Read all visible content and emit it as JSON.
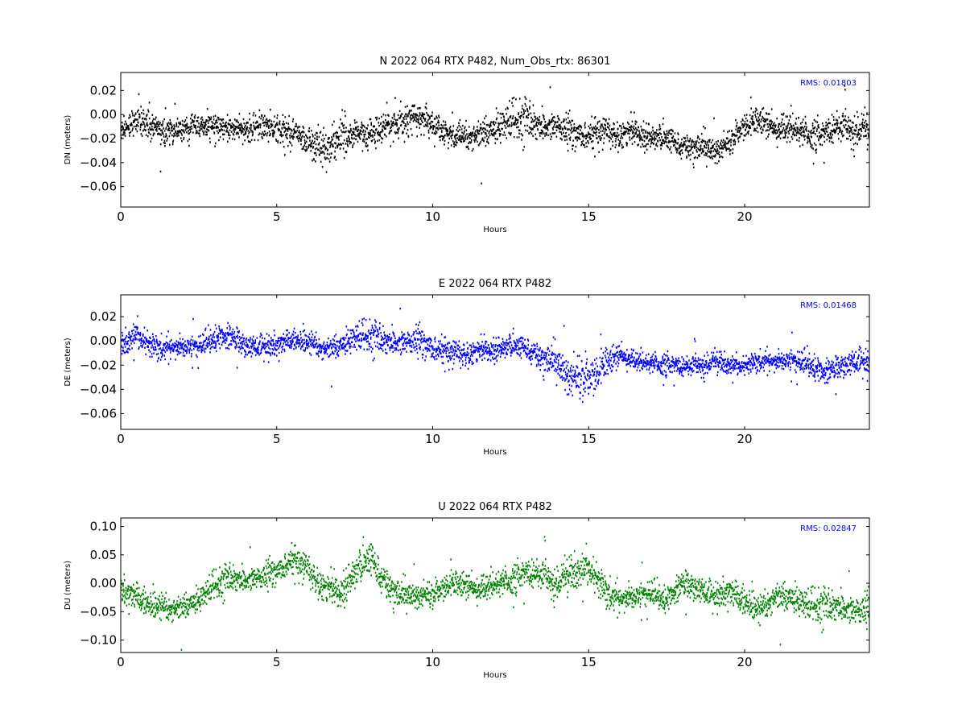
{
  "chart_data": [
    {
      "type": "scatter",
      "title": "N 2022 064 RTX  P482, Num_Obs_rtx: 86301",
      "xlabel": "Hours",
      "ylabel": "DN (meters)",
      "xlim": [
        0,
        24
      ],
      "ylim": [
        -0.077,
        0.035
      ],
      "xticks": [
        0,
        5,
        10,
        15,
        20
      ],
      "yticks": [
        0.02,
        0.0,
        -0.02,
        -0.04,
        -0.06
      ],
      "ytick_labels": [
        "0.02",
        "0.00",
        "−0.02",
        "−0.04",
        "−0.06"
      ],
      "color": "#000000",
      "annotation": "RMS:  0.01803",
      "annotation_color": "#0000ff",
      "series": [
        {
          "x": [
            0,
            0.5,
            1,
            1.5,
            2,
            2.5,
            3,
            3.5,
            4,
            4.5,
            5,
            5.5,
            6,
            6.5,
            7,
            7.5,
            8,
            8.5,
            9,
            9.5,
            10,
            10.5,
            11,
            11.5,
            12,
            12.5,
            13,
            13.5,
            14,
            14.5,
            15,
            15.5,
            16,
            16.5,
            17,
            17.5,
            18,
            18.5,
            19,
            19.5,
            20,
            20.5,
            21,
            21.5,
            22,
            22.5,
            23,
            23.5,
            24
          ],
          "y": [
            -0.013,
            -0.004,
            -0.011,
            -0.014,
            -0.012,
            -0.01,
            -0.009,
            -0.012,
            -0.013,
            -0.01,
            -0.012,
            -0.016,
            -0.022,
            -0.03,
            -0.02,
            -0.018,
            -0.015,
            -0.012,
            -0.004,
            -0.002,
            -0.008,
            -0.018,
            -0.02,
            -0.015,
            -0.012,
            -0.006,
            -0.004,
            -0.01,
            -0.01,
            -0.016,
            -0.018,
            -0.014,
            -0.016,
            -0.014,
            -0.018,
            -0.02,
            -0.026,
            -0.028,
            -0.03,
            -0.024,
            -0.008,
            -0.006,
            -0.012,
            -0.01,
            -0.016,
            -0.018,
            -0.01,
            -0.012,
            -0.014
          ],
          "spread": [
            0.008,
            0.01,
            0.009,
            0.009,
            0.008,
            0.008,
            0.009,
            0.008,
            0.009,
            0.01,
            0.01,
            0.011,
            0.013,
            0.015,
            0.014,
            0.012,
            0.012,
            0.012,
            0.011,
            0.011,
            0.01,
            0.01,
            0.01,
            0.011,
            0.012,
            0.013,
            0.013,
            0.012,
            0.011,
            0.011,
            0.011,
            0.01,
            0.01,
            0.01,
            0.009,
            0.009,
            0.009,
            0.01,
            0.01,
            0.009,
            0.01,
            0.01,
            0.01,
            0.011,
            0.01,
            0.01,
            0.011,
            0.011,
            0.011
          ]
        }
      ]
    },
    {
      "type": "scatter",
      "title": "E 2022 064 RTX  P482",
      "xlabel": "Hours",
      "ylabel": "DE (meters)",
      "xlim": [
        0,
        24
      ],
      "ylim": [
        -0.073,
        0.038
      ],
      "xticks": [
        0,
        5,
        10,
        15,
        20
      ],
      "yticks": [
        0.02,
        0.0,
        -0.02,
        -0.04,
        -0.06
      ],
      "ytick_labels": [
        "0.02",
        "0.00",
        "−0.02",
        "−0.04",
        "−0.06"
      ],
      "color": "#0000ff",
      "annotation": "RMS:  0.01468",
      "annotation_color": "#0000ff",
      "series": [
        {
          "x": [
            0,
            0.5,
            1,
            1.5,
            2,
            2.5,
            3,
            3.5,
            4,
            4.5,
            5,
            5.5,
            6,
            6.5,
            7,
            7.5,
            8,
            8.5,
            9,
            9.5,
            10,
            10.5,
            11,
            11.5,
            12,
            12.5,
            13,
            13.5,
            14,
            14.5,
            15,
            15.5,
            16,
            16.5,
            17,
            17.5,
            18,
            18.5,
            19,
            19.5,
            20,
            20.5,
            21,
            21.5,
            22,
            22.5,
            23,
            23.5,
            24
          ],
          "y": [
            -0.006,
            0.006,
            -0.004,
            -0.006,
            -0.006,
            -0.004,
            0.002,
            0.004,
            -0.004,
            -0.006,
            -0.002,
            0.002,
            -0.002,
            -0.006,
            -0.004,
            0.002,
            0.004,
            0.0,
            -0.002,
            0.0,
            -0.006,
            -0.01,
            -0.01,
            -0.008,
            -0.006,
            -0.004,
            -0.006,
            -0.014,
            -0.02,
            -0.03,
            -0.03,
            -0.02,
            -0.012,
            -0.016,
            -0.018,
            -0.02,
            -0.022,
            -0.02,
            -0.018,
            -0.02,
            -0.02,
            -0.016,
            -0.018,
            -0.016,
            -0.018,
            -0.026,
            -0.022,
            -0.018,
            -0.018
          ],
          "spread": [
            0.008,
            0.01,
            0.009,
            0.008,
            0.008,
            0.008,
            0.009,
            0.009,
            0.008,
            0.008,
            0.008,
            0.007,
            0.008,
            0.008,
            0.009,
            0.01,
            0.01,
            0.01,
            0.01,
            0.01,
            0.01,
            0.009,
            0.009,
            0.008,
            0.008,
            0.008,
            0.008,
            0.01,
            0.012,
            0.016,
            0.016,
            0.012,
            0.008,
            0.007,
            0.007,
            0.007,
            0.007,
            0.007,
            0.007,
            0.007,
            0.007,
            0.007,
            0.007,
            0.008,
            0.009,
            0.009,
            0.008,
            0.009,
            0.009
          ]
        }
      ]
    },
    {
      "type": "scatter",
      "title": "U 2022 064 RTX  P482",
      "xlabel": "Hours",
      "ylabel": "DU (meters)",
      "xlim": [
        0,
        24
      ],
      "ylim": [
        -0.122,
        0.115
      ],
      "xticks": [
        0,
        5,
        10,
        15,
        20
      ],
      "yticks": [
        0.1,
        0.05,
        0.0,
        -0.05,
        -0.1
      ],
      "ytick_labels": [
        "0.10",
        "0.05",
        "0.00",
        "−0.05",
        "−0.10"
      ],
      "color": "#008000",
      "annotation": "RMS:  0.02847",
      "annotation_color": "#0000ff",
      "series": [
        {
          "x": [
            0,
            0.5,
            1,
            1.5,
            2,
            2.5,
            3,
            3.5,
            4,
            4.5,
            5,
            5.5,
            6,
            6.5,
            7,
            7.5,
            8,
            8.5,
            9,
            9.5,
            10,
            10.5,
            11,
            11.5,
            12,
            12.5,
            13,
            13.5,
            14,
            14.5,
            15,
            15.5,
            16,
            16.5,
            17,
            17.5,
            18,
            18.5,
            19,
            19.5,
            20,
            20.5,
            21,
            21.5,
            22,
            22.5,
            23,
            23.5,
            24
          ],
          "y": [
            -0.01,
            -0.02,
            -0.04,
            -0.045,
            -0.04,
            -0.03,
            -0.005,
            0.01,
            0.005,
            0.01,
            0.02,
            0.04,
            0.025,
            -0.005,
            -0.015,
            0.02,
            0.045,
            0.0,
            -0.025,
            -0.02,
            -0.02,
            0.0,
            -0.005,
            -0.01,
            0.0,
            0.005,
            0.015,
            0.015,
            0.0,
            0.015,
            0.03,
            -0.01,
            -0.03,
            -0.025,
            -0.015,
            -0.03,
            0.0,
            -0.01,
            -0.025,
            -0.01,
            -0.03,
            -0.05,
            -0.02,
            -0.025,
            -0.04,
            -0.04,
            -0.04,
            -0.05,
            -0.045
          ],
          "spread": [
            0.02,
            0.02,
            0.02,
            0.02,
            0.02,
            0.02,
            0.02,
            0.02,
            0.02,
            0.02,
            0.02,
            0.022,
            0.022,
            0.022,
            0.024,
            0.026,
            0.026,
            0.024,
            0.022,
            0.02,
            0.02,
            0.02,
            0.02,
            0.02,
            0.02,
            0.02,
            0.022,
            0.022,
            0.022,
            0.026,
            0.028,
            0.024,
            0.02,
            0.02,
            0.02,
            0.02,
            0.02,
            0.02,
            0.02,
            0.02,
            0.022,
            0.022,
            0.022,
            0.024,
            0.022,
            0.024,
            0.024,
            0.024,
            0.024
          ]
        }
      ]
    }
  ]
}
